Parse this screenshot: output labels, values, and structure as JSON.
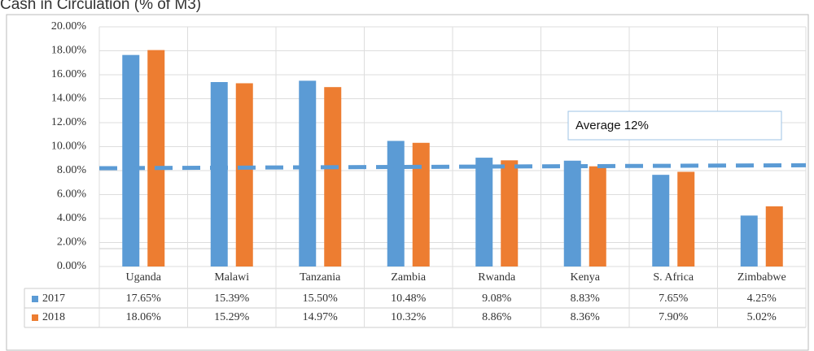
{
  "chart_data": {
    "type": "bar",
    "title": "Cash in Circulation (% of M3)",
    "categories": [
      "Uganda",
      "Malawi",
      "Tanzania",
      "Zambia",
      "Rwanda",
      "Kenya",
      "S. Africa",
      "Zimbabwe"
    ],
    "series": [
      {
        "name": "2017",
        "color": "#5b9bd5",
        "values": [
          17.65,
          15.39,
          15.5,
          10.48,
          9.08,
          8.83,
          7.65,
          4.25
        ],
        "value_labels": [
          "17.65%",
          "15.39%",
          "15.50%",
          "10.48%",
          "9.08%",
          "8.83%",
          "7.65%",
          "4.25%"
        ]
      },
      {
        "name": "2018",
        "color": "#ed7d31",
        "values": [
          18.06,
          15.29,
          14.97,
          10.32,
          8.86,
          8.36,
          7.9,
          5.02
        ],
        "value_labels": [
          "18.06%",
          "15.29%",
          "14.97%",
          "10.32%",
          "8.86%",
          "8.36%",
          "7.90%",
          "5.02%"
        ]
      }
    ],
    "ylim": [
      0,
      20
    ],
    "yticks": [
      {
        "value": 0,
        "label": "0.00%"
      },
      {
        "value": 2,
        "label": "2.00%"
      },
      {
        "value": 4,
        "label": "4.00%"
      },
      {
        "value": 6,
        "label": "6.00%"
      },
      {
        "value": 8,
        "label": "8.00%"
      },
      {
        "value": 10,
        "label": "10.00%"
      },
      {
        "value": 12,
        "label": "12.00%"
      },
      {
        "value": 14,
        "label": "14.00%"
      },
      {
        "value": 16,
        "label": "16.00%"
      },
      {
        "value": 18,
        "label": "18.00%"
      },
      {
        "value": 20,
        "label": "20.00%"
      }
    ],
    "grid": true,
    "reference_line": {
      "label": "Average 12%",
      "start": 8.2,
      "end": 8.45,
      "color": "#5b9bd5"
    }
  }
}
